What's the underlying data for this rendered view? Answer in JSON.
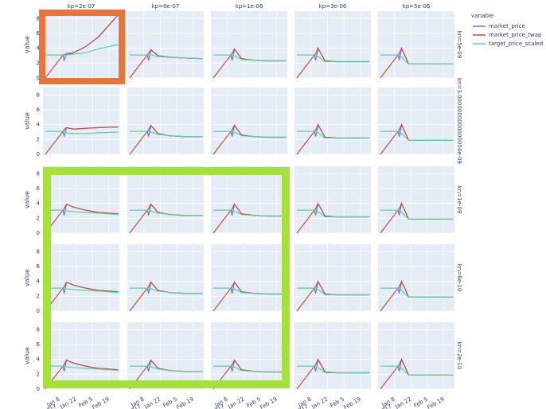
{
  "chart_data": {
    "type": "facet-line",
    "y_label": "value",
    "legend_title": "variable",
    "columns": [
      "kp=2e-07",
      "kp=6e-07",
      "kp=1e-06",
      "kp=3e-06",
      "kp=5e-06"
    ],
    "rows": [
      "kn=5e-09",
      "kn=3.0000000000000004e-09",
      "kn=1e-09",
      "kn=6e-10",
      "kn=2e-10"
    ],
    "x": [
      "2016-12-27",
      "2017-01-11",
      "2017-01-12",
      "2017-01-14",
      "2017-01-20",
      "2017-01-30",
      "2017-02-10",
      "2017-02-27"
    ],
    "xlim": [
      "2016-12-25",
      "2017-02-28"
    ],
    "xticks": [
      {
        "value": "2017-01-08",
        "label": "Jan 8"
      },
      {
        "value": "2017-01-22",
        "label": "Jan 22"
      },
      {
        "value": "2017-02-05",
        "label": "Feb 5"
      },
      {
        "value": "2017-02-19",
        "label": "Feb 19"
      }
    ],
    "x_year": "2017",
    "ylim": [
      0,
      9
    ],
    "yticks": [
      0,
      2,
      4,
      6,
      8
    ],
    "grid": true,
    "series": [
      {
        "name": "market_price",
        "color": "#636efa"
      },
      {
        "name": "market_price_twap",
        "color": "#c44e3f"
      },
      {
        "name": "target_price_scaled",
        "color": "#5fcf9f"
      }
    ],
    "panels": [
      [
        [
          [
            3.1,
            3.1,
            2.4,
            3.3,
            3.4,
            4.2,
            5.5,
            8.5
          ],
          [
            0,
            3.1,
            3.2,
            3.1,
            3.4,
            4.2,
            5.5,
            8.5
          ],
          [
            3.1,
            3.1,
            3.1,
            3.1,
            3.2,
            3.4,
            3.9,
            4.5
          ]
        ],
        [
          [
            3.1,
            3.1,
            2.4,
            3.8,
            3.0,
            2.8,
            2.7,
            2.6
          ],
          [
            0,
            3.1,
            3.3,
            3.8,
            3.0,
            2.8,
            2.7,
            2.6
          ],
          [
            3.1,
            3.1,
            3.1,
            3.1,
            2.9,
            2.8,
            2.7,
            2.6
          ]
        ],
        [
          [
            3.1,
            3.1,
            2.4,
            3.9,
            2.6,
            2.4,
            2.3,
            2.3
          ],
          [
            0,
            3.1,
            3.3,
            3.9,
            2.6,
            2.4,
            2.3,
            2.3
          ],
          [
            3.1,
            3.1,
            3.1,
            3.0,
            2.5,
            2.4,
            2.3,
            2.3
          ]
        ],
        [
          [
            3.1,
            3.1,
            2.4,
            4.0,
            2.3,
            2.2,
            2.2,
            2.2
          ],
          [
            0,
            3.1,
            3.3,
            4.0,
            2.3,
            2.2,
            2.2,
            2.2
          ],
          [
            3.1,
            3.1,
            3.1,
            2.9,
            2.2,
            2.2,
            2.2,
            2.2
          ]
        ],
        [
          [
            3.1,
            3.1,
            2.4,
            4.0,
            1.9,
            1.9,
            1.9,
            1.9
          ],
          [
            0,
            3.1,
            3.3,
            4.0,
            1.9,
            1.9,
            1.9,
            1.9
          ],
          [
            3.1,
            3.1,
            3.1,
            2.8,
            1.9,
            1.9,
            1.9,
            1.9
          ]
        ]
      ],
      [
        [
          [
            3.1,
            3.1,
            2.4,
            3.6,
            3.4,
            3.5,
            3.6,
            3.7
          ],
          [
            0,
            3.1,
            3.3,
            3.6,
            3.4,
            3.5,
            3.6,
            3.7
          ],
          [
            3.1,
            3.1,
            3.1,
            2.9,
            2.8,
            2.8,
            2.9,
            3.0
          ]
        ],
        [
          [
            3.1,
            3.1,
            2.4,
            3.9,
            2.8,
            2.5,
            2.4,
            2.4
          ],
          [
            0,
            3.1,
            3.3,
            3.9,
            2.8,
            2.5,
            2.4,
            2.4
          ],
          [
            3.1,
            3.1,
            3.1,
            3.0,
            2.7,
            2.5,
            2.4,
            2.4
          ]
        ],
        [
          [
            3.1,
            3.1,
            2.4,
            3.9,
            2.6,
            2.4,
            2.3,
            2.3
          ],
          [
            0,
            3.1,
            3.3,
            3.9,
            2.6,
            2.4,
            2.3,
            2.3
          ],
          [
            3.1,
            3.1,
            3.1,
            3.0,
            2.5,
            2.4,
            2.3,
            2.3
          ]
        ],
        [
          [
            3.1,
            3.1,
            2.4,
            4.0,
            2.3,
            2.2,
            2.2,
            2.2
          ],
          [
            0,
            3.1,
            3.3,
            4.0,
            2.3,
            2.2,
            2.2,
            2.2
          ],
          [
            3.1,
            3.1,
            3.1,
            2.9,
            2.2,
            2.2,
            2.2,
            2.2
          ]
        ],
        [
          [
            3.1,
            3.1,
            2.4,
            4.0,
            1.9,
            1.9,
            1.9,
            1.9
          ],
          [
            0,
            3.1,
            3.3,
            4.0,
            1.9,
            1.9,
            1.9,
            1.9
          ],
          [
            3.1,
            3.1,
            3.1,
            2.8,
            1.9,
            1.9,
            1.9,
            1.9
          ]
        ]
      ],
      [
        [
          [
            3.1,
            3.1,
            2.4,
            3.9,
            3.5,
            3.1,
            2.8,
            2.6
          ],
          [
            0,
            3.1,
            3.3,
            3.9,
            3.5,
            3.1,
            2.8,
            2.6
          ],
          [
            3.1,
            3.1,
            3.1,
            3.0,
            2.9,
            2.8,
            2.7,
            2.5
          ]
        ],
        [
          [
            3.1,
            3.1,
            2.4,
            3.9,
            2.8,
            2.5,
            2.4,
            2.4
          ],
          [
            0,
            3.1,
            3.3,
            3.9,
            2.8,
            2.5,
            2.4,
            2.4
          ],
          [
            3.1,
            3.1,
            3.1,
            3.0,
            2.7,
            2.5,
            2.4,
            2.4
          ]
        ],
        [
          [
            3.1,
            3.1,
            2.4,
            3.9,
            2.6,
            2.4,
            2.3,
            2.3
          ],
          [
            0,
            3.1,
            3.3,
            3.9,
            2.6,
            2.4,
            2.3,
            2.3
          ],
          [
            3.1,
            3.1,
            3.1,
            3.0,
            2.5,
            2.4,
            2.3,
            2.3
          ]
        ],
        [
          [
            3.1,
            3.1,
            2.4,
            4.0,
            2.3,
            2.2,
            2.2,
            2.2
          ],
          [
            0,
            3.1,
            3.3,
            4.0,
            2.3,
            2.2,
            2.2,
            2.2
          ],
          [
            3.1,
            3.1,
            3.1,
            2.9,
            2.2,
            2.2,
            2.2,
            2.2
          ]
        ],
        [
          [
            3.1,
            3.1,
            2.4,
            4.0,
            1.9,
            1.9,
            1.9,
            1.9
          ],
          [
            0,
            3.1,
            3.3,
            4.0,
            1.9,
            1.9,
            1.9,
            1.9
          ],
          [
            3.1,
            3.1,
            3.1,
            2.8,
            1.9,
            1.9,
            1.9,
            1.9
          ]
        ]
      ],
      [
        [
          [
            3.1,
            3.1,
            2.4,
            3.9,
            3.5,
            3.1,
            2.8,
            2.6
          ],
          [
            0,
            3.1,
            3.3,
            3.9,
            3.5,
            3.1,
            2.8,
            2.6
          ],
          [
            3.1,
            3.1,
            3.1,
            3.0,
            2.9,
            2.8,
            2.7,
            2.5
          ]
        ],
        [
          [
            3.1,
            3.1,
            2.4,
            3.9,
            2.8,
            2.5,
            2.4,
            2.4
          ],
          [
            0,
            3.1,
            3.3,
            3.9,
            2.8,
            2.5,
            2.4,
            2.4
          ],
          [
            3.1,
            3.1,
            3.1,
            3.0,
            2.7,
            2.5,
            2.4,
            2.4
          ]
        ],
        [
          [
            3.1,
            3.1,
            2.4,
            3.9,
            2.6,
            2.4,
            2.3,
            2.3
          ],
          [
            0,
            3.1,
            3.3,
            3.9,
            2.6,
            2.4,
            2.3,
            2.3
          ],
          [
            3.1,
            3.1,
            3.1,
            3.0,
            2.5,
            2.4,
            2.3,
            2.3
          ]
        ],
        [
          [
            3.1,
            3.1,
            2.4,
            4.0,
            2.3,
            2.2,
            2.2,
            2.2
          ],
          [
            0,
            3.1,
            3.3,
            4.0,
            2.3,
            2.2,
            2.2,
            2.2
          ],
          [
            3.1,
            3.1,
            3.1,
            2.9,
            2.2,
            2.2,
            2.2,
            2.2
          ]
        ],
        [
          [
            3.1,
            3.1,
            2.4,
            4.0,
            1.9,
            1.9,
            1.9,
            1.9
          ],
          [
            0,
            3.1,
            3.3,
            4.0,
            1.9,
            1.9,
            1.9,
            1.9
          ],
          [
            3.1,
            3.1,
            3.1,
            2.8,
            1.9,
            1.9,
            1.9,
            1.9
          ]
        ]
      ],
      [
        [
          [
            3.1,
            3.1,
            2.4,
            3.9,
            3.5,
            3.1,
            2.8,
            2.6
          ],
          [
            0,
            3.1,
            3.3,
            3.9,
            3.5,
            3.1,
            2.8,
            2.6
          ],
          [
            3.1,
            3.1,
            3.1,
            3.0,
            2.9,
            2.8,
            2.7,
            2.5
          ]
        ],
        [
          [
            3.1,
            3.1,
            2.4,
            3.9,
            2.8,
            2.5,
            2.4,
            2.4
          ],
          [
            0,
            3.1,
            3.3,
            3.9,
            2.8,
            2.5,
            2.4,
            2.4
          ],
          [
            3.1,
            3.1,
            3.1,
            3.0,
            2.7,
            2.5,
            2.4,
            2.4
          ]
        ],
        [
          [
            3.1,
            3.1,
            2.4,
            3.9,
            2.6,
            2.4,
            2.3,
            2.3
          ],
          [
            0,
            3.1,
            3.3,
            3.9,
            2.6,
            2.4,
            2.3,
            2.3
          ],
          [
            3.1,
            3.1,
            3.1,
            3.0,
            2.5,
            2.4,
            2.3,
            2.3
          ]
        ],
        [
          [
            3.1,
            3.1,
            2.4,
            4.0,
            2.3,
            2.2,
            2.2,
            2.2
          ],
          [
            0,
            3.1,
            3.3,
            4.0,
            2.3,
            2.2,
            2.2,
            2.2
          ],
          [
            3.1,
            3.1,
            3.1,
            2.9,
            2.2,
            2.2,
            2.2,
            2.2
          ]
        ],
        [
          [
            3.1,
            3.1,
            2.4,
            4.0,
            1.9,
            1.9,
            1.9,
            1.9
          ],
          [
            0,
            3.1,
            3.3,
            4.0,
            1.9,
            1.9,
            1.9,
            1.9
          ],
          [
            3.1,
            3.1,
            3.1,
            2.8,
            1.9,
            1.9,
            1.9,
            1.9
          ]
        ]
      ]
    ]
  }
}
